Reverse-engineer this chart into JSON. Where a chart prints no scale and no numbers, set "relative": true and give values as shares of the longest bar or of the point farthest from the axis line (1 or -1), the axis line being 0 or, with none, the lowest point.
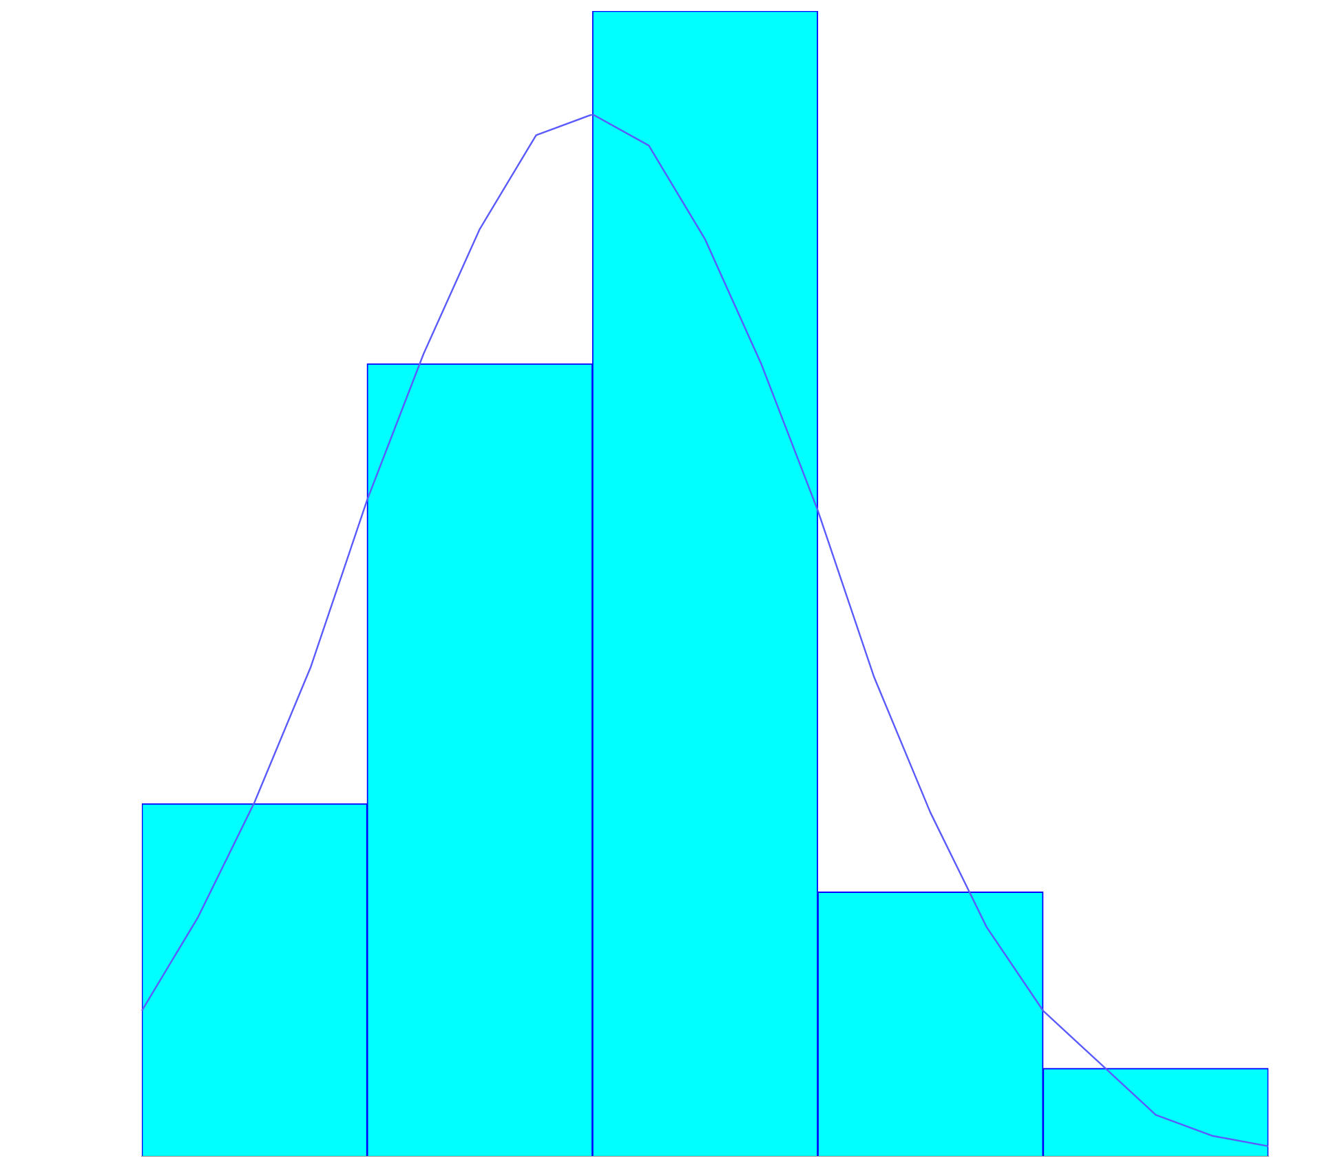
{
  "chart_data": [
    {
      "type": "bar",
      "relative": true,
      "categories": [
        null,
        null,
        null,
        null,
        null
      ],
      "values": [
        0.308,
        0.692,
        1,
        0.231,
        0.077
      ],
      "color": "#00ffff"
    },
    {
      "type": "line",
      "relative": true,
      "categories": [
        null,
        null,
        null,
        null,
        null,
        null,
        null,
        null,
        null,
        null,
        null,
        null,
        null,
        null,
        null,
        null,
        null,
        null,
        null,
        null,
        null
      ],
      "color": "#5a5aff",
      "values": [
        0.14,
        0.23,
        0.34,
        0.47,
        0.63,
        0.77,
        0.89,
        0.98,
        1,
        0.97,
        0.88,
        0.76,
        0.62,
        0.46,
        0.33,
        0.22,
        0.14,
        0.09,
        0.04,
        0.02,
        0.01
      ]
    }
  ]
}
